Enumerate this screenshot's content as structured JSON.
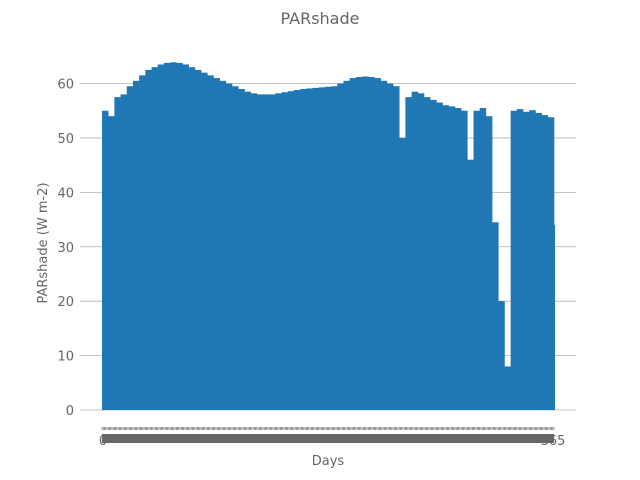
{
  "chart_data": {
    "type": "bar",
    "title": "PARshade",
    "xlabel": "Days",
    "ylabel": "PARshade (W m-2)",
    "ylim": [
      0,
      68
    ],
    "yticks": [
      0,
      10,
      20,
      30,
      40,
      50,
      60
    ],
    "grid": "horizontal",
    "bar_color": "#1f77b4",
    "x_first_tick_label": "0",
    "x_last_tick_label": "365",
    "x": [
      0,
      5,
      10,
      15,
      20,
      25,
      30,
      35,
      40,
      45,
      50,
      55,
      60,
      65,
      70,
      75,
      80,
      85,
      90,
      95,
      100,
      105,
      110,
      115,
      120,
      125,
      130,
      135,
      140,
      145,
      150,
      155,
      160,
      165,
      170,
      175,
      180,
      185,
      190,
      195,
      200,
      205,
      210,
      215,
      220,
      225,
      230,
      235,
      240,
      245,
      250,
      255,
      260,
      265,
      270,
      275,
      280,
      285,
      290,
      295,
      300,
      305,
      310,
      315,
      320,
      325,
      330,
      335,
      340,
      345,
      350,
      355,
      360,
      365
    ],
    "values": [
      55,
      54,
      57.5,
      58,
      59.5,
      60.5,
      61.5,
      62.5,
      63,
      63.5,
      63.8,
      63.9,
      63.8,
      63.5,
      63,
      62.5,
      62,
      61.5,
      61,
      60.5,
      60,
      59.5,
      59,
      58.5,
      58.2,
      58,
      58,
      58,
      58.2,
      58.4,
      58.6,
      58.8,
      59,
      59.1,
      59.2,
      59.3,
      59.4,
      59.5,
      60,
      60.5,
      61,
      61.2,
      61.3,
      61.2,
      61,
      60.5,
      60,
      59.5,
      50,
      57.5,
      58.5,
      58.2,
      57.5,
      57,
      56.5,
      56,
      55.8,
      55.5,
      55,
      46,
      55,
      55.5,
      54,
      34.5,
      20,
      8,
      55,
      55.3,
      54.8,
      55.1,
      54.6,
      54.2,
      53.8,
      34
    ]
  }
}
